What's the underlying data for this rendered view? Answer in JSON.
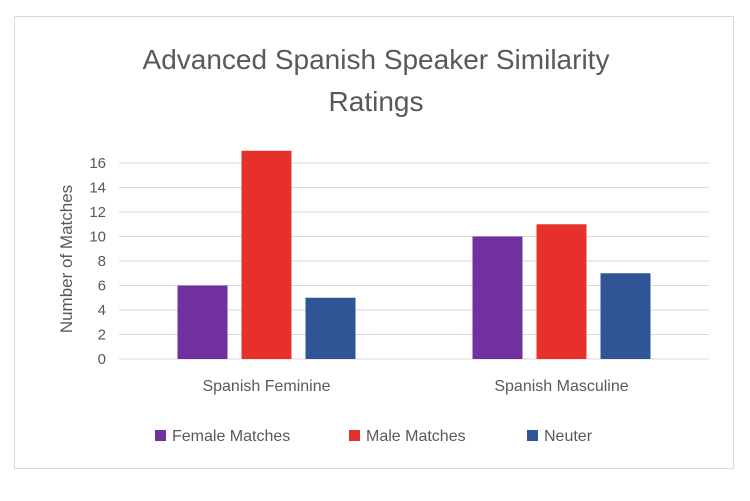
{
  "chart_data": {
    "type": "bar",
    "title_lines": [
      "Advanced Spanish Speaker Similarity",
      "Ratings"
    ],
    "xlabel": "",
    "ylabel": "Number  of Matches",
    "categories": [
      "Spanish Feminine",
      "Spanish Masculine"
    ],
    "series": [
      {
        "name": "Female Matches",
        "color": "#7030a0",
        "values": [
          6,
          10
        ]
      },
      {
        "name": "Male Matches",
        "color": "#e8302a",
        "values": [
          17,
          11
        ]
      },
      {
        "name": "Neuter",
        "color": "#2f5597",
        "values": [
          5,
          7
        ]
      }
    ],
    "ylim": [
      0,
      16
    ],
    "yticks": [
      "0",
      "2",
      "4",
      "6",
      "8",
      "10",
      "12",
      "14",
      "16"
    ],
    "grid": true,
    "legend_position": "bottom"
  }
}
